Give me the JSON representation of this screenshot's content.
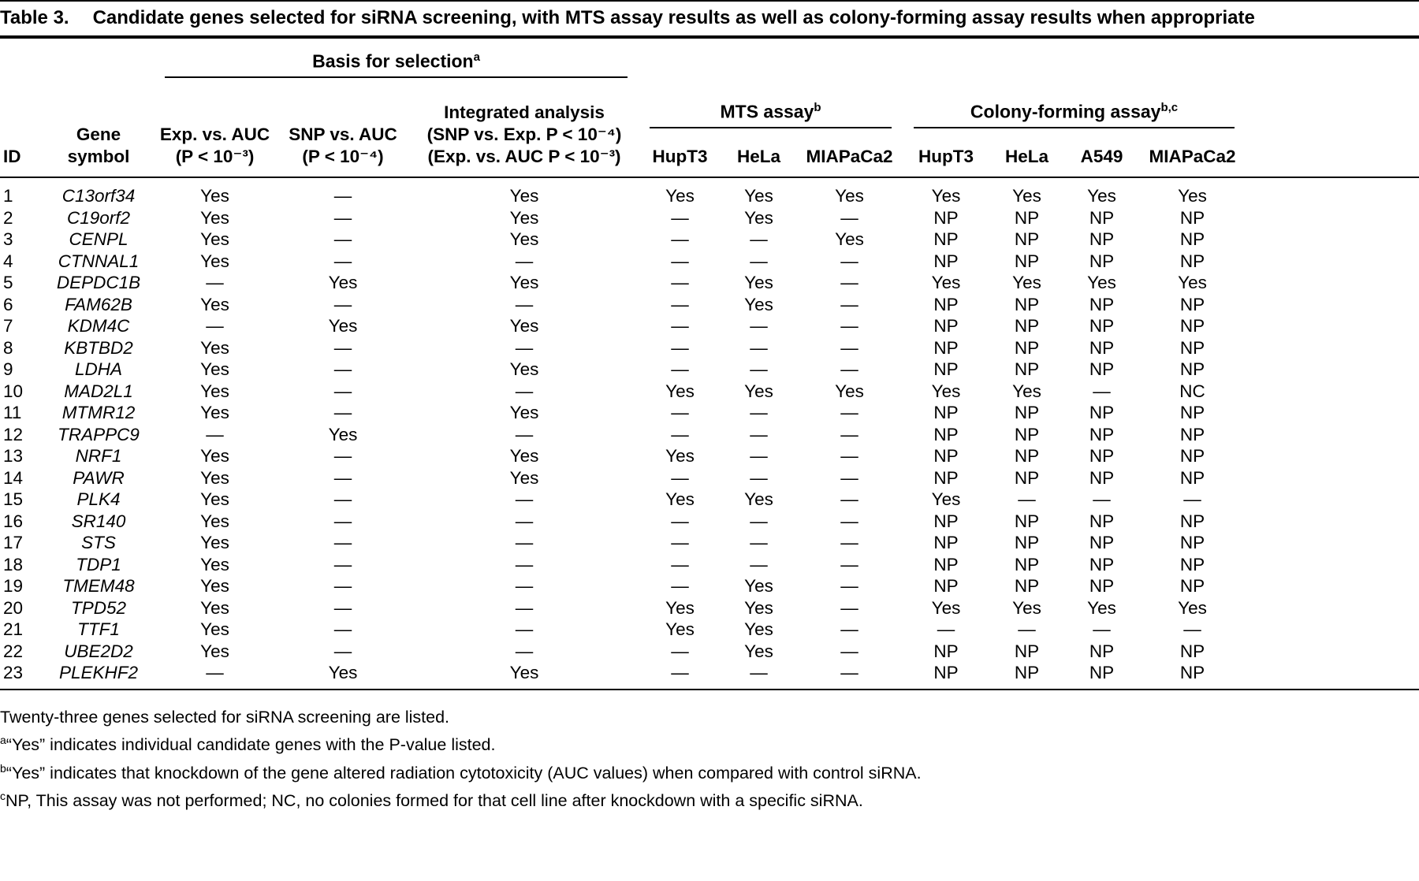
{
  "title": {
    "label": "Table 3.",
    "text": "Candidate genes selected for siRNA screening, with MTS assay results as well as colony-forming assay results when appropriate"
  },
  "table": {
    "groups": {
      "basis": {
        "label": "Basis for selection",
        "sup": "a"
      },
      "mts": {
        "label": "MTS assay",
        "sup": "b"
      },
      "colony": {
        "label": "Colony-forming assay",
        "sup": "b,c"
      }
    },
    "columns": {
      "id": "ID",
      "gene": [
        "Gene",
        "symbol"
      ],
      "exp": [
        "Exp. vs. AUC",
        "(P < 10⁻³)"
      ],
      "snp": [
        "SNP vs. AUC",
        "(P < 10⁻⁴)"
      ],
      "integrated": [
        "Integrated analysis",
        "(SNP vs. Exp. P < 10⁻⁴)",
        "(Exp. vs. AUC P < 10⁻³)"
      ],
      "mts_cells": [
        "HupT3",
        "HeLa",
        "MIAPaCa2"
      ],
      "colony_cells": [
        "HupT3",
        "HeLa",
        "A549",
        "MIAPaCa2"
      ]
    },
    "rows": [
      {
        "id": "1",
        "gene": "C13orf34",
        "values": [
          "Yes",
          "—",
          "Yes",
          "Yes",
          "Yes",
          "Yes",
          "Yes",
          "Yes",
          "Yes",
          "Yes"
        ]
      },
      {
        "id": "2",
        "gene": "C19orf2",
        "values": [
          "Yes",
          "—",
          "Yes",
          "—",
          "Yes",
          "—",
          "NP",
          "NP",
          "NP",
          "NP"
        ]
      },
      {
        "id": "3",
        "gene": "CENPL",
        "values": [
          "Yes",
          "—",
          "Yes",
          "—",
          "—",
          "Yes",
          "NP",
          "NP",
          "NP",
          "NP"
        ]
      },
      {
        "id": "4",
        "gene": "CTNNAL1",
        "values": [
          "Yes",
          "—",
          "—",
          "—",
          "—",
          "—",
          "NP",
          "NP",
          "NP",
          "NP"
        ]
      },
      {
        "id": "5",
        "gene": "DEPDC1B",
        "values": [
          "—",
          "Yes",
          "Yes",
          "—",
          "Yes",
          "—",
          "Yes",
          "Yes",
          "Yes",
          "Yes"
        ]
      },
      {
        "id": "6",
        "gene": "FAM62B",
        "values": [
          "Yes",
          "—",
          "—",
          "—",
          "Yes",
          "—",
          "NP",
          "NP",
          "NP",
          "NP"
        ]
      },
      {
        "id": "7",
        "gene": "KDM4C",
        "values": [
          "—",
          "Yes",
          "Yes",
          "—",
          "—",
          "—",
          "NP",
          "NP",
          "NP",
          "NP"
        ]
      },
      {
        "id": "8",
        "gene": "KBTBD2",
        "values": [
          "Yes",
          "—",
          "—",
          "—",
          "—",
          "—",
          "NP",
          "NP",
          "NP",
          "NP"
        ]
      },
      {
        "id": "9",
        "gene": "LDHA",
        "values": [
          "Yes",
          "—",
          "Yes",
          "—",
          "—",
          "—",
          "NP",
          "NP",
          "NP",
          "NP"
        ]
      },
      {
        "id": "10",
        "gene": "MAD2L1",
        "values": [
          "Yes",
          "—",
          "—",
          "Yes",
          "Yes",
          "Yes",
          "Yes",
          "Yes",
          "—",
          "NC"
        ]
      },
      {
        "id": "11",
        "gene": "MTMR12",
        "values": [
          "Yes",
          "—",
          "Yes",
          "—",
          "—",
          "—",
          "NP",
          "NP",
          "NP",
          "NP"
        ]
      },
      {
        "id": "12",
        "gene": "TRAPPC9",
        "values": [
          "—",
          "Yes",
          "—",
          "—",
          "—",
          "—",
          "NP",
          "NP",
          "NP",
          "NP"
        ]
      },
      {
        "id": "13",
        "gene": "NRF1",
        "values": [
          "Yes",
          "—",
          "Yes",
          "Yes",
          "—",
          "—",
          "NP",
          "NP",
          "NP",
          "NP"
        ]
      },
      {
        "id": "14",
        "gene": "PAWR",
        "values": [
          "Yes",
          "—",
          "Yes",
          "—",
          "—",
          "—",
          "NP",
          "NP",
          "NP",
          "NP"
        ]
      },
      {
        "id": "15",
        "gene": "PLK4",
        "values": [
          "Yes",
          "—",
          "—",
          "Yes",
          "Yes",
          "—",
          "Yes",
          "—",
          "—",
          "—"
        ]
      },
      {
        "id": "16",
        "gene": "SR140",
        "values": [
          "Yes",
          "—",
          "—",
          "—",
          "—",
          "—",
          "NP",
          "NP",
          "NP",
          "NP"
        ]
      },
      {
        "id": "17",
        "gene": "STS",
        "values": [
          "Yes",
          "—",
          "—",
          "—",
          "—",
          "—",
          "NP",
          "NP",
          "NP",
          "NP"
        ]
      },
      {
        "id": "18",
        "gene": "TDP1",
        "values": [
          "Yes",
          "—",
          "—",
          "—",
          "—",
          "—",
          "NP",
          "NP",
          "NP",
          "NP"
        ]
      },
      {
        "id": "19",
        "gene": "TMEM48",
        "values": [
          "Yes",
          "—",
          "—",
          "—",
          "Yes",
          "—",
          "NP",
          "NP",
          "NP",
          "NP"
        ]
      },
      {
        "id": "20",
        "gene": "TPD52",
        "values": [
          "Yes",
          "—",
          "—",
          "Yes",
          "Yes",
          "—",
          "Yes",
          "Yes",
          "Yes",
          "Yes"
        ]
      },
      {
        "id": "21",
        "gene": "TTF1",
        "values": [
          "Yes",
          "—",
          "—",
          "Yes",
          "Yes",
          "—",
          "—",
          "—",
          "—",
          "—"
        ]
      },
      {
        "id": "22",
        "gene": "UBE2D2",
        "values": [
          "Yes",
          "—",
          "—",
          "—",
          "Yes",
          "—",
          "NP",
          "NP",
          "NP",
          "NP"
        ]
      },
      {
        "id": "23",
        "gene": "PLEKHF2",
        "values": [
          "—",
          "Yes",
          "Yes",
          "—",
          "—",
          "—",
          "NP",
          "NP",
          "NP",
          "NP"
        ]
      }
    ]
  },
  "footnotes": [
    {
      "sup": "",
      "text": "Twenty-three genes selected for siRNA screening are listed."
    },
    {
      "sup": "a",
      "text": "“Yes” indicates individual candidate genes with the P-value listed."
    },
    {
      "sup": "b",
      "text": "“Yes” indicates that knockdown of the gene altered radiation cytotoxicity (AUC values) when compared with control siRNA."
    },
    {
      "sup": "c",
      "text": "NP, This assay was not performed; NC, no colonies formed for that cell line after knockdown with a specific siRNA."
    }
  ]
}
